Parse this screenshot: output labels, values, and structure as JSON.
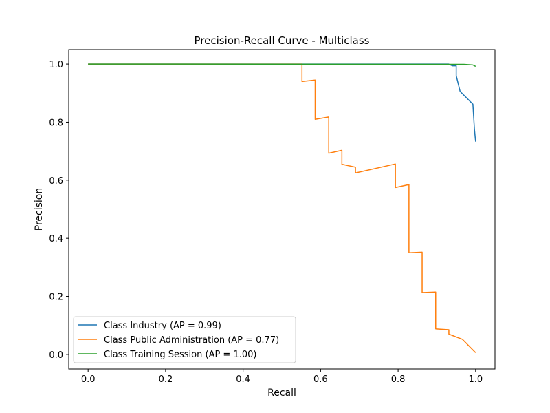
{
  "chart_data": {
    "type": "line",
    "title": "Precision-Recall Curve - Multiclass",
    "xlabel": "Recall",
    "ylabel": "Precision",
    "xlim": [
      -0.05,
      1.05
    ],
    "ylim": [
      -0.05,
      1.05
    ],
    "xticks": [
      0.0,
      0.2,
      0.4,
      0.6,
      0.8,
      1.0
    ],
    "xtick_labels": [
      "0.0",
      "0.2",
      "0.4",
      "0.6",
      "0.8",
      "1.0"
    ],
    "yticks": [
      0.0,
      0.2,
      0.4,
      0.6,
      0.8,
      1.0
    ],
    "ytick_labels": [
      "0.0",
      "0.2",
      "0.4",
      "0.6",
      "0.8",
      "1.0"
    ],
    "grid": false,
    "legend_position": "lower-left",
    "series": [
      {
        "name": "Class Industry (AP = 0.99)",
        "color": "#1f77b4",
        "step": "post",
        "x": [
          1.0,
          1.0,
          0.997,
          0.993,
          0.96,
          0.95,
          0.95,
          0.94,
          0.93,
          0.0
        ],
        "y": [
          0.733,
          0.733,
          0.775,
          0.862,
          0.906,
          0.96,
          0.994,
          0.994,
          1.0,
          1.0
        ]
      },
      {
        "name": "Class Public Administration (AP = 0.77)",
        "color": "#ff7f0e",
        "step": "post",
        "x": [
          1.0,
          0.966,
          0.931,
          0.931,
          0.897,
          0.897,
          0.862,
          0.862,
          0.828,
          0.828,
          0.793,
          0.793,
          0.69,
          0.69,
          0.655,
          0.655,
          0.621,
          0.621,
          0.586,
          0.586,
          0.552,
          0.552,
          0.0
        ],
        "y": [
          0.006,
          0.052,
          0.07,
          0.085,
          0.088,
          0.215,
          0.213,
          0.352,
          0.35,
          0.585,
          0.575,
          0.656,
          0.625,
          0.645,
          0.655,
          0.703,
          0.693,
          0.818,
          0.81,
          0.945,
          0.94,
          1.0,
          1.0
        ]
      },
      {
        "name": "Class Training Session (AP = 1.00)",
        "color": "#2ca02c",
        "step": "post",
        "x": [
          1.0,
          0.993,
          0.97,
          0.0
        ],
        "y": [
          0.992,
          0.997,
          0.999,
          1.0
        ]
      }
    ]
  }
}
